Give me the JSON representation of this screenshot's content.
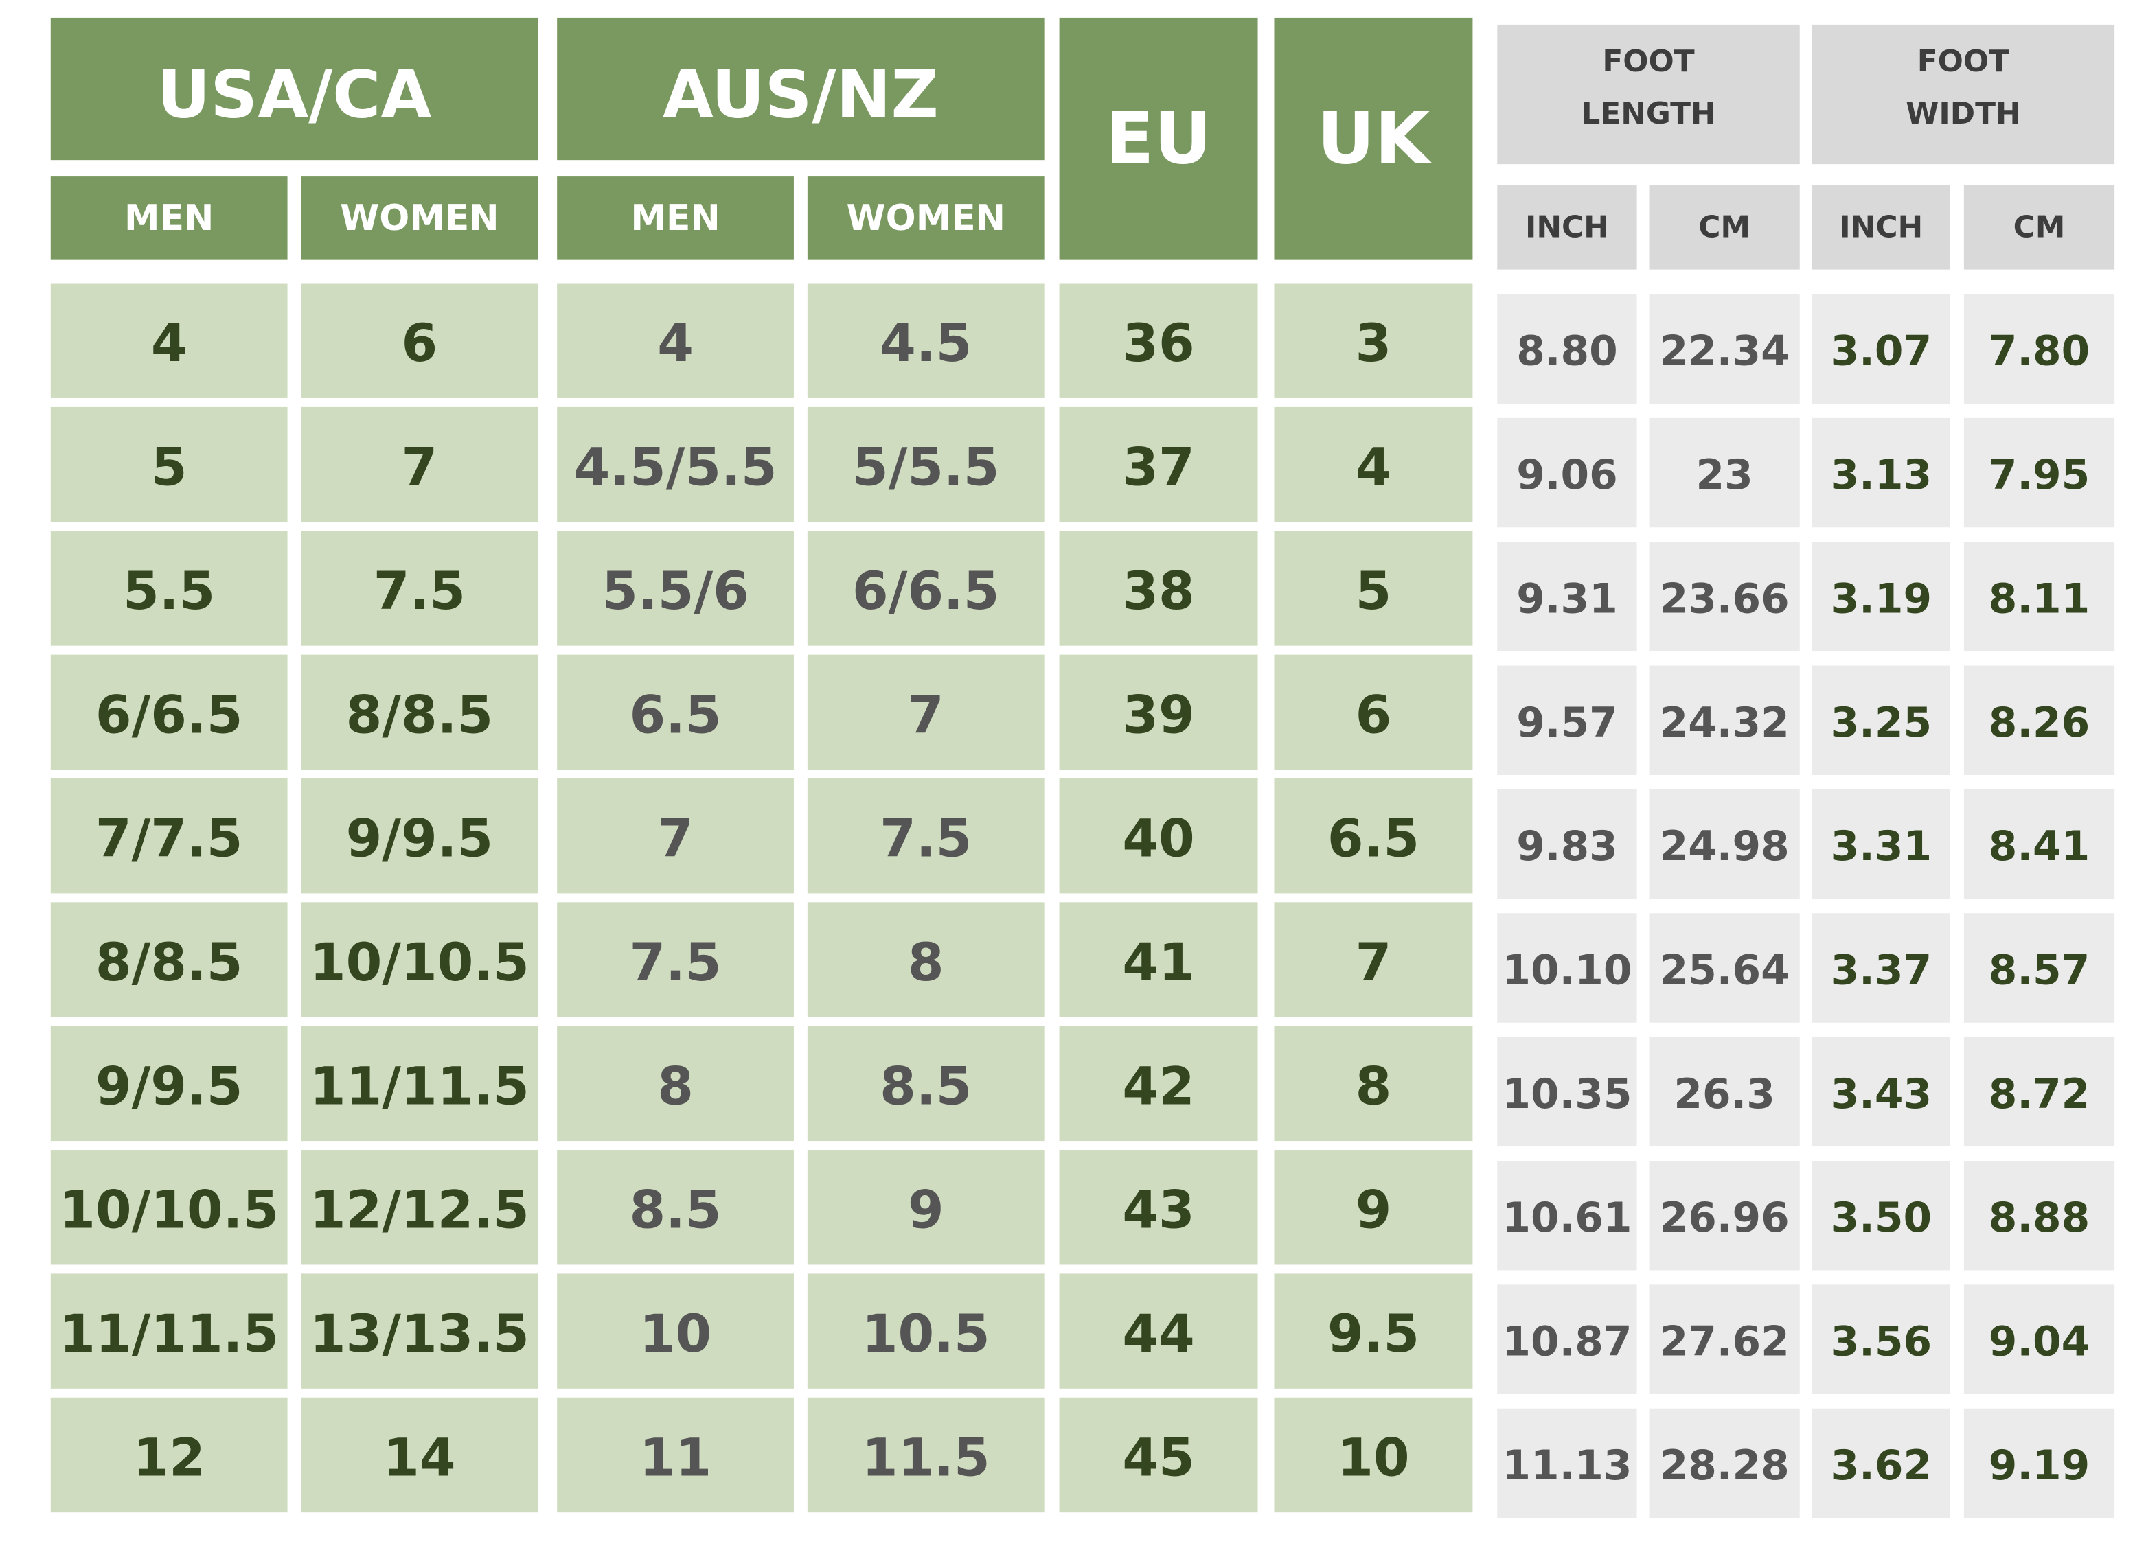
{
  "header": {
    "groups": [
      "USA/CA",
      "AUS/NZ",
      "EU",
      "UK",
      [
        "FOOT",
        "LENGTH"
      ],
      [
        "FOOT",
        "WIDTH"
      ]
    ],
    "sub": [
      "MEN",
      "WOMEN",
      "MEN",
      "WOMEN",
      "INCH",
      "CM",
      "INCH",
      "CM"
    ]
  },
  "table": {
    "rows": [
      [
        "4",
        "6",
        "4",
        "4.5",
        "36",
        "3",
        "8.80",
        "22.34",
        "3.07",
        "7.80"
      ],
      [
        "5",
        "7",
        "4.5/5.5",
        "5/5.5",
        "37",
        "4",
        "9.06",
        "23",
        "3.13",
        "7.95"
      ],
      [
        "5.5",
        "7.5",
        "5.5/6",
        "6/6.5",
        "38",
        "5",
        "9.31",
        "23.66",
        "3.19",
        "8.11"
      ],
      [
        "6/6.5",
        "8/8.5",
        "6.5",
        "7",
        "39",
        "6",
        "9.57",
        "24.32",
        "3.25",
        "8.26"
      ],
      [
        "7/7.5",
        "9/9.5",
        "7",
        "7.5",
        "40",
        "6.5",
        "9.83",
        "24.98",
        "3.31",
        "8.41"
      ],
      [
        "8/8.5",
        "10/10.5",
        "7.5",
        "8",
        "41",
        "7",
        "10.10",
        "25.64",
        "3.37",
        "8.57"
      ],
      [
        "9/9.5",
        "11/11.5",
        "8",
        "8.5",
        "42",
        "8",
        "10.35",
        "26.3",
        "3.43",
        "8.72"
      ],
      [
        "10/10.5",
        "12/12.5",
        "8.5",
        "9",
        "43",
        "9",
        "10.61",
        "26.96",
        "3.50",
        "8.88"
      ],
      [
        "11/11.5",
        "13/13.5",
        "10",
        "10.5",
        "44",
        "9.5",
        "10.87",
        "27.62",
        "3.56",
        "9.04"
      ],
      [
        "12",
        "14",
        "11",
        "11.5",
        "45",
        "10",
        "11.13",
        "28.28",
        "3.62",
        "9.19"
      ]
    ]
  }
}
